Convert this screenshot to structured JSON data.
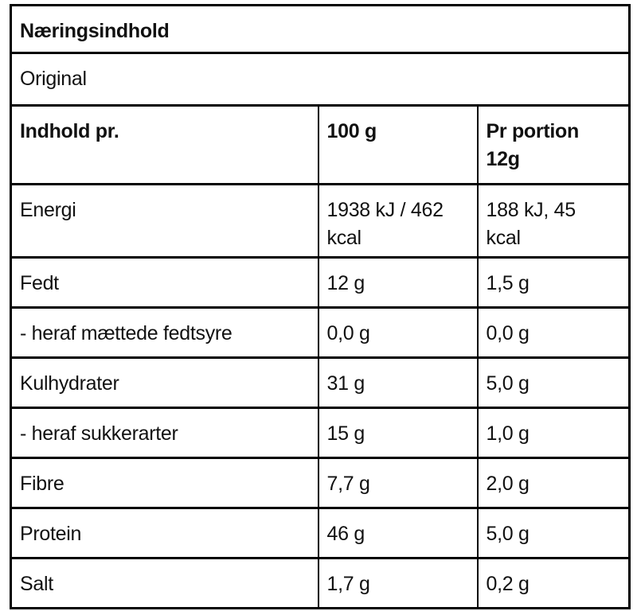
{
  "panel": {
    "title": "Næringsindhold",
    "variant": "Original",
    "columns": [
      "Indhold pr.",
      "100 g",
      "Pr portion\n12g"
    ],
    "rows": [
      {
        "label": "Energi",
        "per_100g": "1938 kJ / 462\nkcal",
        "per_portion": "188 kJ, 45\nkcal"
      },
      {
        "label": "Fedt",
        "per_100g": "12 g",
        "per_portion": "1,5 g"
      },
      {
        "label": "- heraf mættede fedtsyre",
        "per_100g": "0,0 g",
        "per_portion": "0,0 g"
      },
      {
        "label": "Kulhydrater",
        "per_100g": "31 g",
        "per_portion": "5,0 g"
      },
      {
        "label": "- heraf sukkerarter",
        "per_100g": "15 g",
        "per_portion": "1,0 g"
      },
      {
        "label": "Fibre",
        "per_100g": "7,7 g",
        "per_portion": "2,0 g"
      },
      {
        "label": "Protein",
        "per_100g": "46 g",
        "per_portion": "5,0 g"
      },
      {
        "label": "Salt",
        "per_100g": "1,7 g",
        "per_portion": "0,2 g"
      }
    ],
    "colors": {
      "border": "#000000",
      "text": "#111111",
      "background": "#ffffff"
    }
  }
}
